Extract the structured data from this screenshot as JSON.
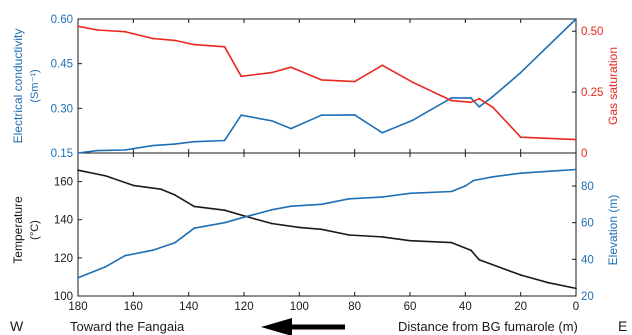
{
  "colors": {
    "blue": "#1f6fb5",
    "red": "#e8281e",
    "black": "#1a1a1a"
  },
  "chart_data": [
    {
      "type": "line",
      "panel": "top",
      "x_reversed": true,
      "xlim": [
        180,
        0
      ],
      "left_axis": {
        "label": "Electrical conductivity",
        "unit": "(Sm⁻¹)",
        "ylim": [
          0.15,
          0.6
        ],
        "ticks": [
          0.15,
          0.3,
          0.45,
          0.6
        ],
        "tick_labels": [
          "0.15",
          "0.30",
          "0.45",
          "0.60"
        ],
        "color": "blue"
      },
      "right_axis": {
        "label": "Gas saturation",
        "ylim": [
          0,
          0.55
        ],
        "ticks": [
          0,
          0.25,
          0.5
        ],
        "tick_labels": [
          "0",
          "0.25",
          "0.50"
        ],
        "color": "red"
      },
      "series": [
        {
          "axis": "left",
          "color": "blue",
          "x": [
            180,
            173,
            163,
            153,
            145,
            138,
            127,
            121,
            110,
            103,
            92,
            80,
            70,
            59,
            45,
            38,
            35,
            30,
            20,
            0
          ],
          "y": [
            0.15,
            0.158,
            0.16,
            0.175,
            0.18,
            0.188,
            0.192,
            0.277,
            0.258,
            0.232,
            0.277,
            0.278,
            0.218,
            0.26,
            0.335,
            0.335,
            0.305,
            0.34,
            0.42,
            0.6
          ]
        },
        {
          "axis": "right",
          "color": "red",
          "x": [
            180,
            173,
            163,
            153,
            145,
            138,
            127,
            121,
            110,
            103,
            92,
            80,
            70,
            59,
            45,
            38,
            35,
            30,
            20,
            0
          ],
          "y": [
            0.52,
            0.505,
            0.498,
            0.47,
            0.462,
            0.445,
            0.436,
            0.315,
            0.33,
            0.352,
            0.3,
            0.293,
            0.36,
            0.29,
            0.215,
            0.208,
            0.223,
            0.187,
            0.065,
            0.055
          ]
        }
      ]
    },
    {
      "type": "line",
      "panel": "bottom",
      "x_reversed": true,
      "xlim": [
        180,
        0
      ],
      "xticks": [
        180,
        160,
        140,
        120,
        100,
        80,
        60,
        40,
        20,
        0
      ],
      "left_axis": {
        "label": "Temperature",
        "unit": "(°C)",
        "ylim": [
          100,
          175
        ],
        "ticks": [
          100,
          120,
          140,
          160
        ],
        "tick_labels": [
          "100",
          "120",
          "140",
          "160"
        ],
        "color": "black"
      },
      "right_axis": {
        "label": "Elevation (m)",
        "ylim": [
          20,
          98
        ],
        "ticks": [
          20,
          40,
          60,
          80
        ],
        "tick_labels": [
          "20",
          "40",
          "60",
          "80"
        ],
        "color": "blue"
      },
      "series": [
        {
          "axis": "left",
          "color": "black",
          "x": [
            180,
            170,
            160,
            150,
            145,
            138,
            127,
            120,
            110,
            100,
            92,
            82,
            70,
            60,
            45,
            38,
            35,
            20,
            10,
            0
          ],
          "y": [
            166,
            163,
            158,
            156,
            153,
            147,
            145,
            142,
            138,
            136,
            135,
            132,
            131,
            129,
            128,
            124,
            119,
            111,
            107,
            104
          ]
        },
        {
          "axis": "right",
          "color": "blue",
          "x": [
            180,
            170,
            163,
            153,
            145,
            138,
            127,
            120,
            110,
            103,
            92,
            82,
            70,
            60,
            45,
            40,
            37,
            30,
            20,
            10,
            0
          ],
          "y": [
            30,
            36,
            42,
            45,
            49,
            57,
            60,
            63,
            67,
            69,
            70,
            73,
            74,
            76,
            77,
            80,
            83,
            85,
            87,
            88,
            89
          ]
        }
      ]
    }
  ],
  "labels": {
    "west": "W",
    "east": "E",
    "toward": "Toward the Fangaia",
    "distance": "Distance from BG fumarole (m)"
  }
}
